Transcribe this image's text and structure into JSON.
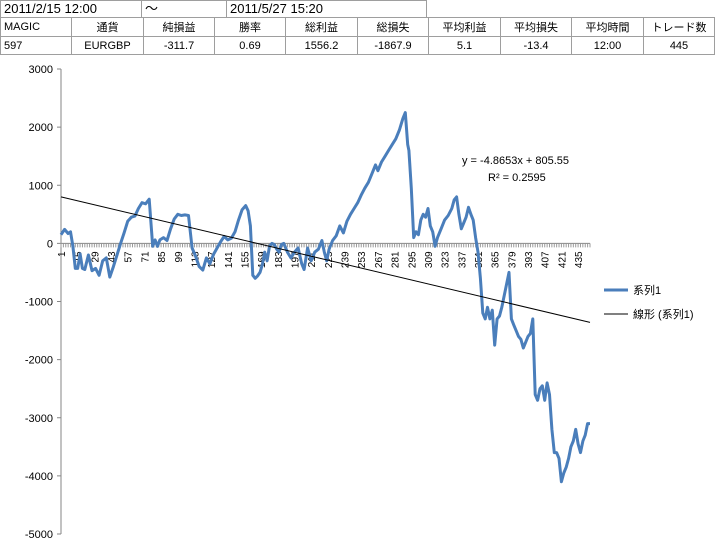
{
  "period": {
    "start": "2011/2/15 12:00",
    "separator": "～",
    "end": "2011/5/27 15:20"
  },
  "stats": {
    "headers": [
      "MAGIC",
      "通貨",
      "純損益",
      "勝率",
      "総利益",
      "総損失",
      "平均利益",
      "平均損失",
      "平均時間",
      "トレード数"
    ],
    "values": [
      "597",
      "EURGBP",
      "-311.7",
      "0.69",
      "1556.2",
      "-1867.9",
      "5.1",
      "-13.4",
      "12:00",
      "445"
    ]
  },
  "chart_data": {
    "type": "line",
    "title": "",
    "xlabel": "",
    "ylabel": "",
    "ylim": [
      -5000,
      3000
    ],
    "yticks": [
      "3000",
      "2000",
      "1000",
      "0",
      "-1000",
      "-2000",
      "-3000",
      "-4000",
      "-5000"
    ],
    "xlim": [
      1,
      445
    ],
    "xticks": [
      "1",
      "15",
      "29",
      "43",
      "57",
      "71",
      "85",
      "99",
      "113",
      "127",
      "141",
      "155",
      "169",
      "183",
      "197",
      "211",
      "225",
      "239",
      "253",
      "267",
      "281",
      "295",
      "309",
      "323",
      "337",
      "351",
      "365",
      "379",
      "393",
      "407",
      "421",
      "435"
    ],
    "grid": false,
    "legend_position": "right",
    "series": [
      {
        "name": "系列1",
        "color": "#4a7ebb",
        "points": [
          [
            1,
            150
          ],
          [
            4,
            240
          ],
          [
            7,
            170
          ],
          [
            9,
            200
          ],
          [
            11,
            -50
          ],
          [
            13,
            -430
          ],
          [
            15,
            -430
          ],
          [
            17,
            -180
          ],
          [
            19,
            -430
          ],
          [
            21,
            -450
          ],
          [
            24,
            -200
          ],
          [
            27,
            -470
          ],
          [
            30,
            -430
          ],
          [
            33,
            -550
          ],
          [
            36,
            -300
          ],
          [
            39,
            -250
          ],
          [
            42,
            -580
          ],
          [
            45,
            -400
          ],
          [
            48,
            -200
          ],
          [
            51,
            0
          ],
          [
            54,
            180
          ],
          [
            57,
            380
          ],
          [
            60,
            450
          ],
          [
            63,
            470
          ],
          [
            66,
            600
          ],
          [
            69,
            700
          ],
          [
            72,
            680
          ],
          [
            75,
            760
          ],
          [
            78,
            -50
          ],
          [
            80,
            60
          ],
          [
            82,
            -50
          ],
          [
            84,
            60
          ],
          [
            87,
            100
          ],
          [
            90,
            50
          ],
          [
            93,
            250
          ],
          [
            96,
            420
          ],
          [
            99,
            500
          ],
          [
            102,
            480
          ],
          [
            105,
            490
          ],
          [
            108,
            480
          ],
          [
            111,
            -80
          ],
          [
            114,
            -220
          ],
          [
            117,
            -400
          ],
          [
            120,
            -460
          ],
          [
            123,
            -250
          ],
          [
            126,
            -350
          ],
          [
            129,
            -190
          ],
          [
            132,
            -80
          ],
          [
            135,
            30
          ],
          [
            138,
            120
          ],
          [
            141,
            60
          ],
          [
            144,
            90
          ],
          [
            147,
            200
          ],
          [
            150,
            400
          ],
          [
            153,
            580
          ],
          [
            156,
            650
          ],
          [
            158,
            560
          ],
          [
            160,
            300
          ],
          [
            162,
            -550
          ],
          [
            164,
            -600
          ],
          [
            166,
            -560
          ],
          [
            168,
            -500
          ],
          [
            170,
            -360
          ],
          [
            172,
            -150
          ],
          [
            174,
            -300
          ],
          [
            176,
            -50
          ],
          [
            178,
            0
          ],
          [
            180,
            -20
          ],
          [
            182,
            -100
          ],
          [
            184,
            -150
          ],
          [
            186,
            -20
          ],
          [
            188,
            0
          ],
          [
            191,
            -150
          ],
          [
            194,
            -250
          ],
          [
            197,
            -150
          ],
          [
            200,
            -80
          ],
          [
            203,
            -350
          ],
          [
            205,
            -450
          ],
          [
            208,
            -80
          ],
          [
            211,
            -300
          ],
          [
            214,
            -150
          ],
          [
            217,
            -100
          ],
          [
            220,
            50
          ],
          [
            222,
            -150
          ],
          [
            224,
            -300
          ],
          [
            226,
            -100
          ],
          [
            229,
            50
          ],
          [
            232,
            130
          ],
          [
            235,
            300
          ],
          [
            238,
            180
          ],
          [
            241,
            380
          ],
          [
            244,
            500
          ],
          [
            247,
            600
          ],
          [
            250,
            700
          ],
          [
            253,
            830
          ],
          [
            256,
            950
          ],
          [
            259,
            1050
          ],
          [
            262,
            1200
          ],
          [
            265,
            1350
          ],
          [
            267,
            1250
          ],
          [
            270,
            1400
          ],
          [
            273,
            1500
          ],
          [
            276,
            1600
          ],
          [
            279,
            1700
          ],
          [
            282,
            1800
          ],
          [
            285,
            1950
          ],
          [
            288,
            2150
          ],
          [
            290,
            2250
          ],
          [
            292,
            1700
          ],
          [
            293,
            1600
          ],
          [
            295,
            950
          ],
          [
            297,
            100
          ],
          [
            299,
            200
          ],
          [
            301,
            150
          ],
          [
            303,
            400
          ],
          [
            305,
            500
          ],
          [
            307,
            450
          ],
          [
            309,
            600
          ],
          [
            311,
            300
          ],
          [
            313,
            200
          ],
          [
            315,
            -50
          ],
          [
            317,
            100
          ],
          [
            320,
            250
          ],
          [
            323,
            400
          ],
          [
            326,
            480
          ],
          [
            329,
            600
          ],
          [
            331,
            750
          ],
          [
            333,
            800
          ],
          [
            335,
            500
          ],
          [
            337,
            250
          ],
          [
            339,
            350
          ],
          [
            341,
            450
          ],
          [
            343,
            620
          ],
          [
            345,
            500
          ],
          [
            347,
            400
          ],
          [
            349,
            100
          ],
          [
            351,
            -150
          ],
          [
            353,
            -600
          ],
          [
            355,
            -1200
          ],
          [
            357,
            -1300
          ],
          [
            359,
            -1100
          ],
          [
            361,
            -1300
          ],
          [
            363,
            -1150
          ],
          [
            365,
            -1750
          ],
          [
            367,
            -1300
          ],
          [
            369,
            -1250
          ],
          [
            371,
            -1100
          ],
          [
            373,
            -900
          ],
          [
            375,
            -700
          ],
          [
            377,
            -500
          ],
          [
            379,
            -1300
          ],
          [
            381,
            -1400
          ],
          [
            383,
            -1500
          ],
          [
            385,
            -1600
          ],
          [
            387,
            -1650
          ],
          [
            389,
            -1800
          ],
          [
            391,
            -1700
          ],
          [
            393,
            -1600
          ],
          [
            395,
            -1550
          ],
          [
            397,
            -1300
          ],
          [
            399,
            -2600
          ],
          [
            401,
            -2700
          ],
          [
            403,
            -2500
          ],
          [
            405,
            -2450
          ],
          [
            407,
            -2700
          ],
          [
            409,
            -2400
          ],
          [
            411,
            -2600
          ],
          [
            413,
            -3200
          ],
          [
            415,
            -3600
          ],
          [
            417,
            -3600
          ],
          [
            419,
            -3700
          ],
          [
            421,
            -4100
          ],
          [
            423,
            -3950
          ],
          [
            425,
            -3850
          ],
          [
            427,
            -3700
          ],
          [
            429,
            -3500
          ],
          [
            431,
            -3400
          ],
          [
            433,
            -3200
          ],
          [
            435,
            -3450
          ],
          [
            437,
            -3600
          ],
          [
            439,
            -3400
          ],
          [
            441,
            -3300
          ],
          [
            443,
            -3100
          ],
          [
            445,
            -3100
          ]
        ]
      },
      {
        "name": "線形 (系列1)",
        "color": "#000000",
        "kind": "trendline",
        "slope": -4.8653,
        "intercept": 805.55
      }
    ],
    "annotations": {
      "equation": "y = -4.8653x + 805.55",
      "r2": "R² = 0.2595"
    }
  }
}
